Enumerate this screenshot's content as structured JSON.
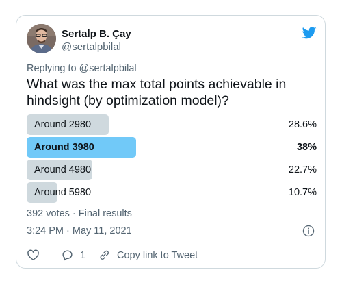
{
  "author": {
    "name": "Sertalp B. Çay",
    "handle": "@sertalpbilal"
  },
  "reply": {
    "prefix": "Replying to",
    "handle": "@sertalpbilal"
  },
  "question": "What was the max total points achievable in hindsight (by optimization model)?",
  "poll": {
    "options": [
      {
        "label": "Around 2980",
        "percent_label": "28.6%",
        "fraction": 0.286,
        "winner": false
      },
      {
        "label": "Around 3980",
        "percent_label": "38%",
        "fraction": 0.38,
        "winner": true
      },
      {
        "label": "Around 4980",
        "percent_label": "22.7%",
        "fraction": 0.227,
        "winner": false
      },
      {
        "label": "Around 5980",
        "percent_label": "10.7%",
        "fraction": 0.107,
        "winner": false
      }
    ],
    "summary": "392 votes · Final results"
  },
  "timestamp": "3:24 PM · May 11, 2021",
  "actions": {
    "like_icon": "heart-icon",
    "reply_icon": "comment-icon",
    "reply_count": "1",
    "copy_icon": "link-icon",
    "copy_label": "Copy link to Tweet"
  },
  "colors": {
    "winner_bar": "#71c9f8",
    "bar": "#cfd9de",
    "secondary_text": "#536471",
    "brand": "#1d9bf0"
  }
}
